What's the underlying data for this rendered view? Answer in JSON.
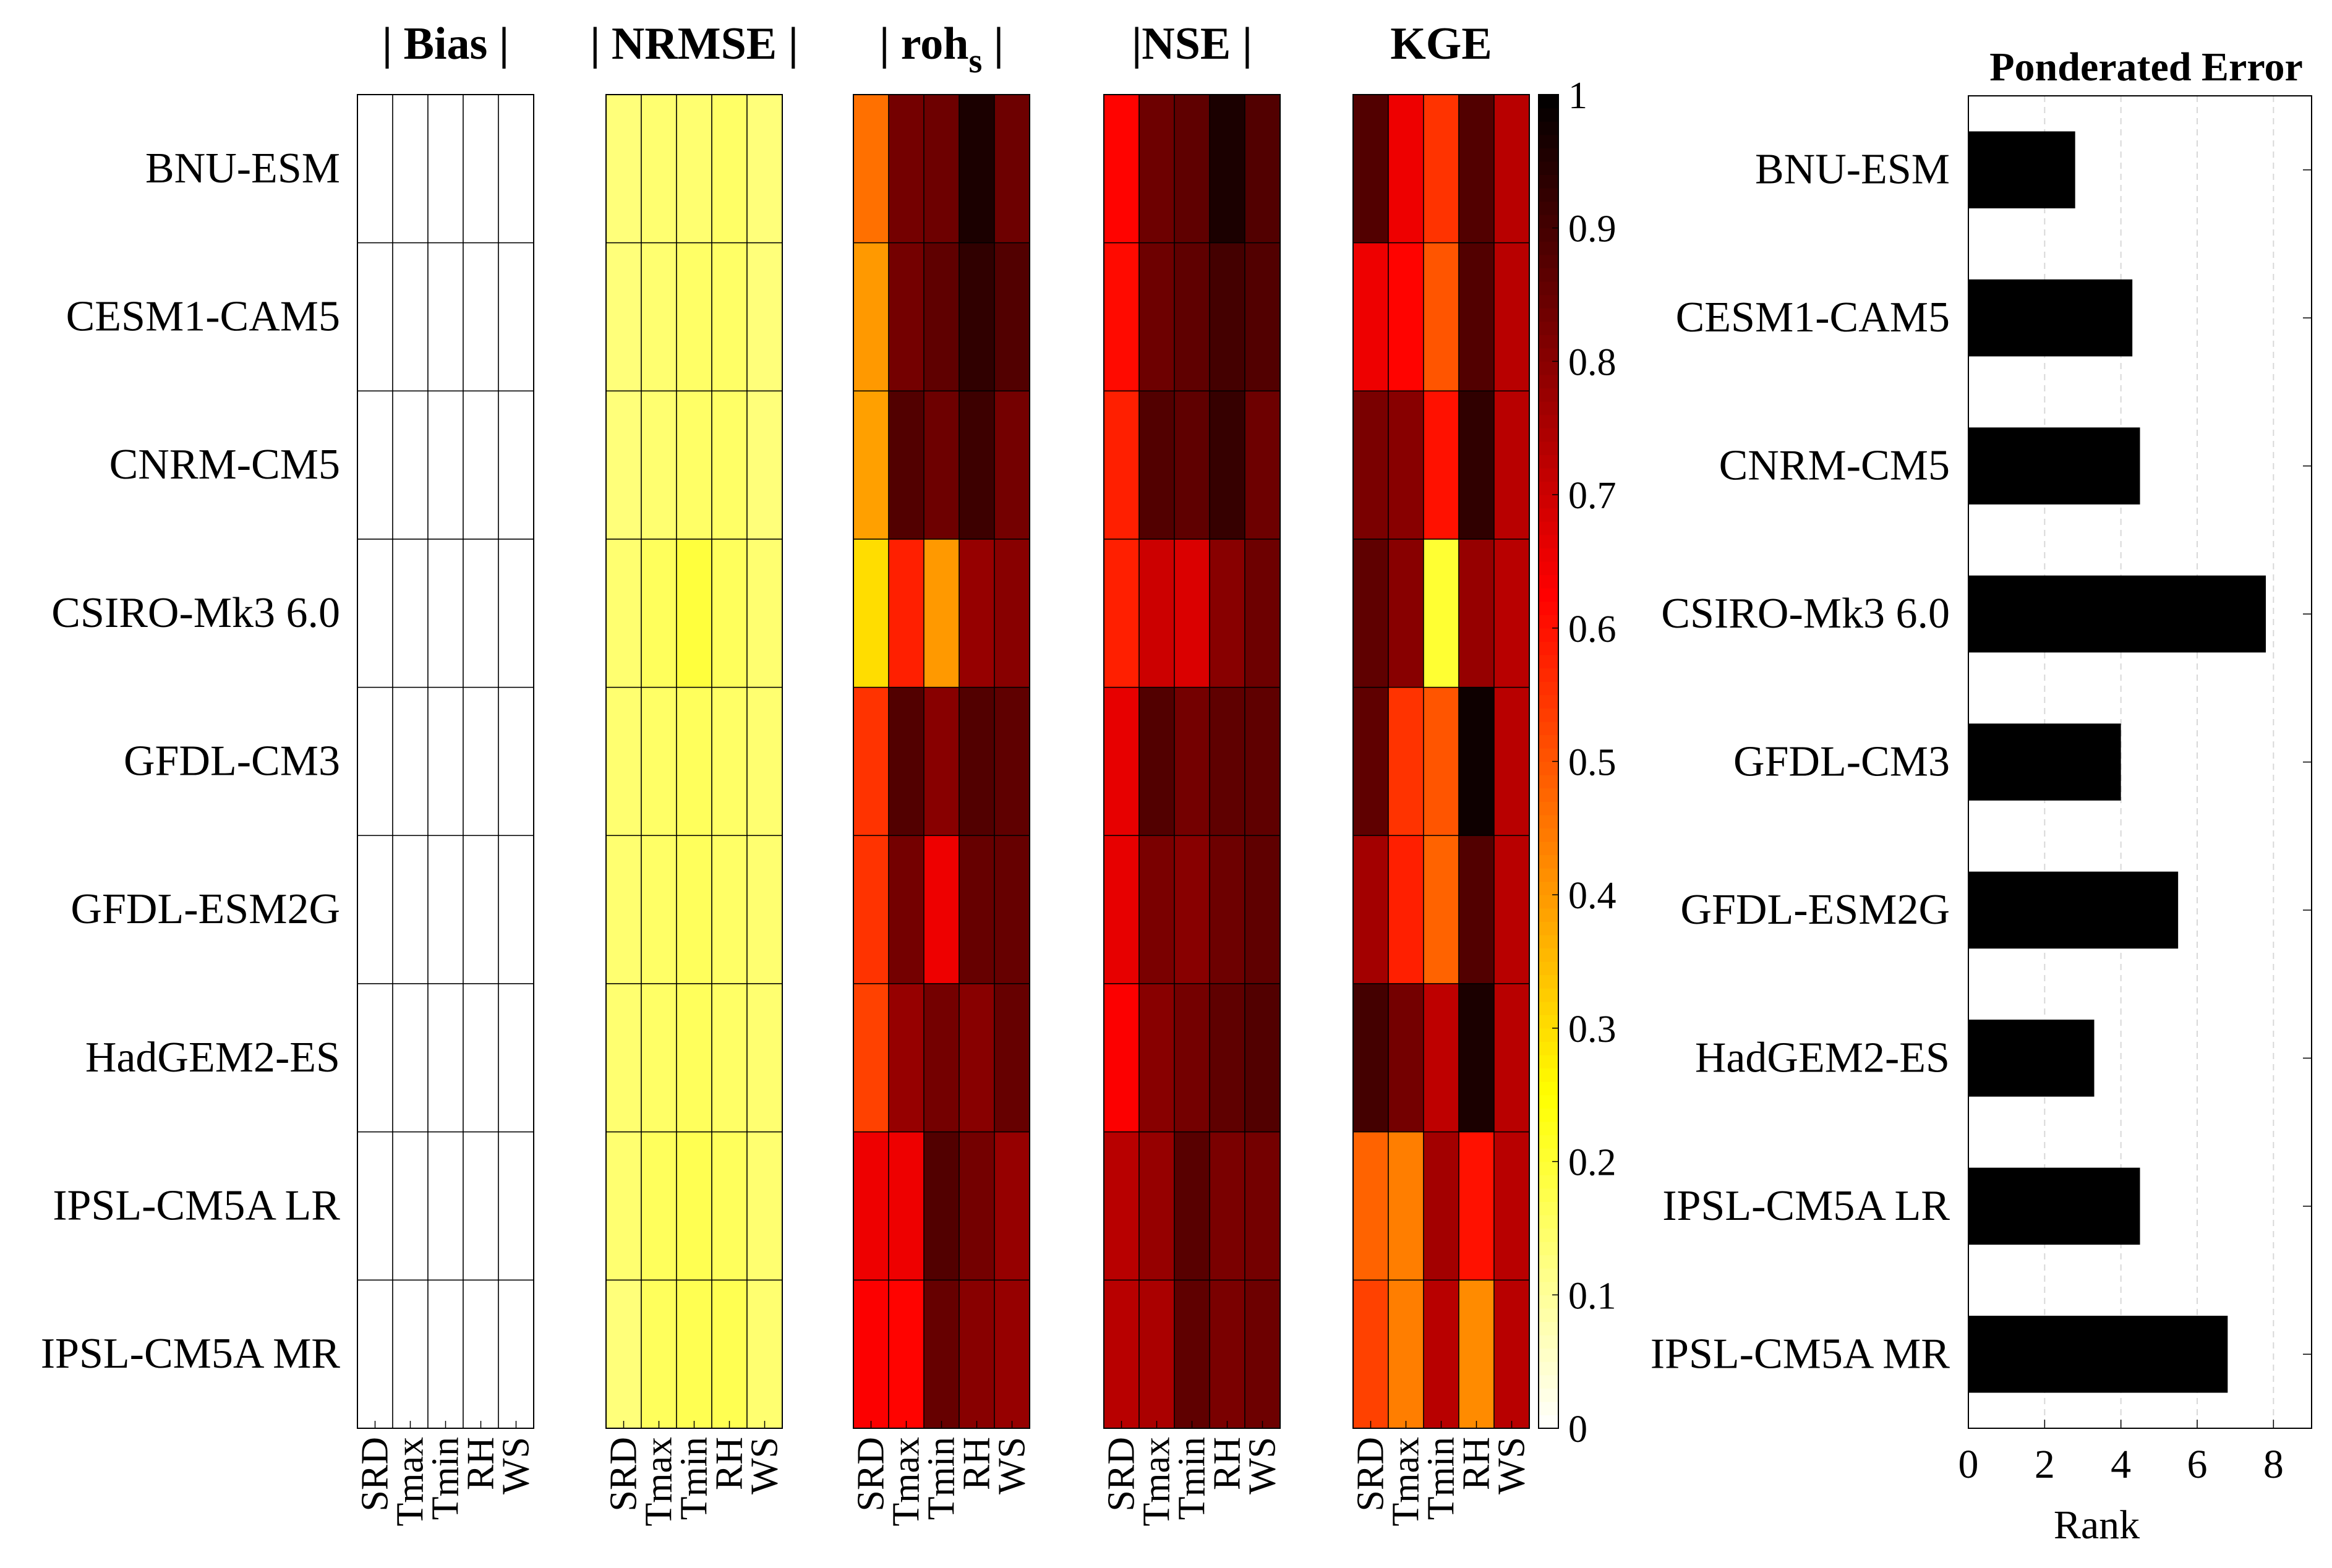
{
  "chart_data": [
    {
      "type": "heatmap",
      "panels": [
        {
          "title": "| Bias |",
          "values": [
            [
              0,
              0,
              0,
              0,
              0
            ],
            [
              0,
              0,
              0,
              0,
              0
            ],
            [
              0,
              0,
              0,
              0,
              0
            ],
            [
              0,
              0,
              0,
              0,
              0
            ],
            [
              0,
              0,
              0,
              0,
              0
            ],
            [
              0,
              0,
              0,
              0,
              0
            ],
            [
              0,
              0,
              0,
              0,
              0
            ],
            [
              0,
              0,
              0,
              0,
              0
            ],
            [
              0,
              0,
              0,
              0,
              0
            ]
          ]
        },
        {
          "title": "| NRMSE |",
          "values": [
            [
              0.13,
              0.14,
              0.14,
              0.15,
              0.13
            ],
            [
              0.13,
              0.14,
              0.15,
              0.15,
              0.13
            ],
            [
              0.13,
              0.14,
              0.15,
              0.15,
              0.13
            ],
            [
              0.14,
              0.16,
              0.19,
              0.16,
              0.14
            ],
            [
              0.14,
              0.15,
              0.16,
              0.15,
              0.14
            ],
            [
              0.14,
              0.15,
              0.16,
              0.15,
              0.14
            ],
            [
              0.14,
              0.15,
              0.16,
              0.15,
              0.14
            ],
            [
              0.14,
              0.16,
              0.17,
              0.16,
              0.14
            ],
            [
              0.13,
              0.16,
              0.17,
              0.17,
              0.14
            ]
          ]
        },
        {
          "title": "| roh",
          "title_sub": "s",
          "title_suffix": " |",
          "values": [
            [
              0.46,
              0.83,
              0.84,
              0.96,
              0.84
            ],
            [
              0.4,
              0.83,
              0.86,
              0.93,
              0.88
            ],
            [
              0.39,
              0.88,
              0.84,
              0.91,
              0.83
            ],
            [
              0.3,
              0.58,
              0.4,
              0.78,
              0.8
            ],
            [
              0.55,
              0.88,
              0.8,
              0.88,
              0.86
            ],
            [
              0.55,
              0.83,
              0.65,
              0.85,
              0.85
            ],
            [
              0.53,
              0.78,
              0.83,
              0.8,
              0.85
            ],
            [
              0.65,
              0.65,
              0.88,
              0.83,
              0.78
            ],
            [
              0.63,
              0.62,
              0.85,
              0.8,
              0.78
            ]
          ]
        },
        {
          "title": "|NSE |",
          "values": [
            [
              0.62,
              0.84,
              0.86,
              0.96,
              0.88
            ],
            [
              0.61,
              0.84,
              0.86,
              0.9,
              0.88
            ],
            [
              0.58,
              0.88,
              0.86,
              0.92,
              0.84
            ],
            [
              0.58,
              0.7,
              0.68,
              0.8,
              0.84
            ],
            [
              0.66,
              0.88,
              0.83,
              0.86,
              0.86
            ],
            [
              0.66,
              0.82,
              0.8,
              0.84,
              0.86
            ],
            [
              0.63,
              0.8,
              0.83,
              0.86,
              0.88
            ],
            [
              0.73,
              0.78,
              0.87,
              0.82,
              0.83
            ],
            [
              0.73,
              0.75,
              0.86,
              0.82,
              0.84
            ]
          ]
        },
        {
          "title": "KGE",
          "values": [
            [
              0.88,
              0.65,
              0.55,
              0.88,
              0.73
            ],
            [
              0.65,
              0.62,
              0.5,
              0.88,
              0.73
            ],
            [
              0.82,
              0.8,
              0.6,
              0.93,
              0.73
            ],
            [
              0.86,
              0.8,
              0.2,
              0.78,
              0.73
            ],
            [
              0.86,
              0.55,
              0.5,
              0.98,
              0.73
            ],
            [
              0.76,
              0.58,
              0.48,
              0.88,
              0.73
            ],
            [
              0.9,
              0.83,
              0.72,
              0.96,
              0.73
            ],
            [
              0.48,
              0.44,
              0.76,
              0.6,
              0.73
            ],
            [
              0.53,
              0.44,
              0.73,
              0.42,
              0.73
            ]
          ]
        }
      ],
      "models": [
        "BNU-ESM",
        "CESM1-CAM5",
        "CNRM-CM5",
        "CSIRO-Mk3 6.0",
        "GFDL-CM3",
        "GFDL-ESM2G",
        "HadGEM2-ES",
        "IPSL-CM5A LR",
        "IPSL-CM5A MR"
      ],
      "variables": [
        "SRD",
        "Tmax",
        "Tmin",
        "RH",
        "WS"
      ],
      "colorbar": {
        "ticks": [
          "0",
          "0.1",
          "0.2",
          "0.3",
          "0.4",
          "0.5",
          "0.6",
          "0.7",
          "0.8",
          "0.9",
          "1"
        ],
        "range": [
          0,
          1
        ],
        "colormap": "hot-reversed"
      }
    },
    {
      "type": "bar",
      "orientation": "horizontal",
      "title": "Ponderated Error",
      "categories": [
        "BNU-ESM",
        "CESM1-CAM5",
        "CNRM-CM5",
        "CSIRO-Mk3 6.0",
        "GFDL-CM3",
        "GFDL-ESM2G",
        "HadGEM2-ES",
        "IPSL-CM5A LR",
        "IPSL-CM5A MR"
      ],
      "values": [
        2.8,
        4.3,
        4.5,
        7.8,
        4.0,
        5.5,
        3.3,
        4.5,
        6.8
      ],
      "xlabel": "Rank",
      "xlim": [
        0,
        9
      ],
      "xticks": [
        "0",
        "2",
        "4",
        "6",
        "8"
      ],
      "bar_color": "#000000",
      "grid": "vertical dashed"
    }
  ]
}
